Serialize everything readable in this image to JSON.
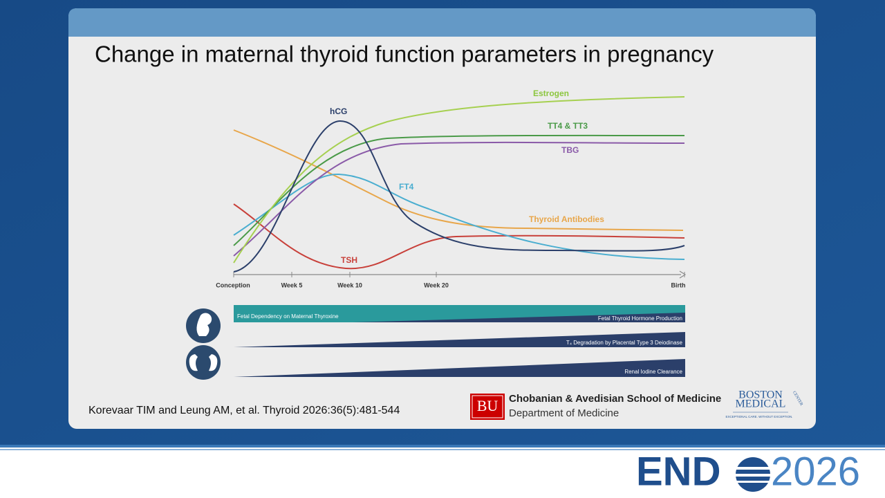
{
  "slide": {
    "title": "Change in maternal thyroid function parameters in pregnancy",
    "x_axis": [
      "Conception",
      "Week 5",
      "Week 10",
      "Week 20",
      "Birth"
    ],
    "curve_labels": {
      "estrogen": "Estrogen",
      "hcg": "hCG",
      "tt4_tt3": "TT4 & TT3",
      "tbg": "TBG",
      "ft4": "FT4",
      "antibodies": "Thyroid Antibodies",
      "tsh": "TSH"
    },
    "bars": {
      "fetal_dependency": "Fetal Dependency on Maternal Thyroxine",
      "fetal_production": "Fetal Thyroid Hormone Production",
      "degradation": "T₄ Degradation by Placental Type 3 Deiodinase",
      "renal": "Renal Iodine Clearance"
    },
    "citation": "Korevaar TIM and Leung AM, et al. Thyroid 2026:36(5):481-544"
  },
  "logos": {
    "bu_mark": "BU",
    "school": "Chobanian & Avedisian School of Medicine",
    "department": "Department of Medicine",
    "bmc_line1": "BOSTON",
    "bmc_line2": "MEDICAL",
    "bmc_center": "CENTER",
    "bmc_tagline": "EXCEPTIONAL CARE. WITHOUT EXCEPTION."
  },
  "footer": {
    "brand": "END",
    "year": "2026"
  }
}
